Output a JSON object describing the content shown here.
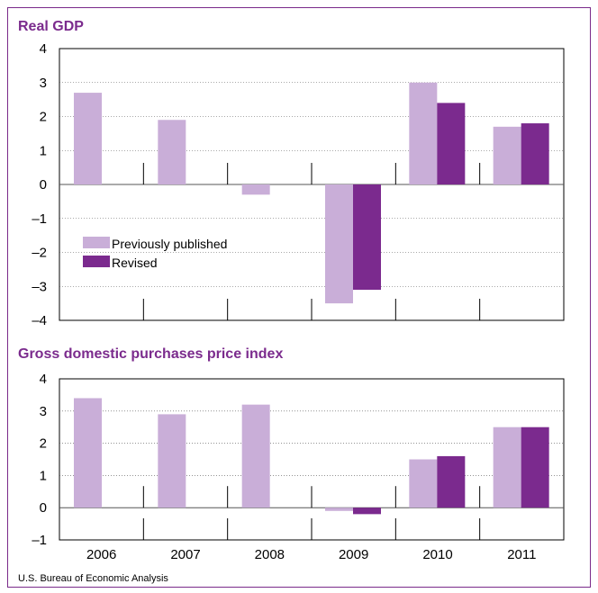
{
  "source": "U.S. Bureau of Economic Analysis",
  "colors": {
    "previous": "#c9aed8",
    "revised": "#7b2a8e",
    "title": "#7b2b8d",
    "frame": "#7a2a8a"
  },
  "chart_data": [
    {
      "type": "bar",
      "title": "Real GDP",
      "categories": [
        "2006",
        "2007",
        "2008",
        "2009",
        "2010",
        "2011"
      ],
      "series": [
        {
          "name": "Previously published",
          "values": [
            2.7,
            1.9,
            -0.3,
            -3.5,
            3.0,
            1.7
          ]
        },
        {
          "name": "Revised",
          "values": [
            null,
            null,
            null,
            -3.1,
            2.4,
            1.8
          ]
        }
      ],
      "ylim": [
        -4,
        4
      ],
      "yticks": [
        "4",
        "3",
        "2",
        "1",
        "0",
        "–1",
        "–2",
        "–3",
        "–4"
      ],
      "ytick_values": [
        4,
        3,
        2,
        1,
        0,
        -1,
        -2,
        -3,
        -4
      ],
      "grid": true,
      "legend": "inside-lower-left"
    },
    {
      "type": "bar",
      "title": "Gross domestic purchases price index",
      "categories": [
        "2006",
        "2007",
        "2008",
        "2009",
        "2010",
        "2011"
      ],
      "series": [
        {
          "name": "Previously published",
          "values": [
            3.4,
            2.9,
            3.2,
            -0.1,
            1.5,
            2.5
          ]
        },
        {
          "name": "Revised",
          "values": [
            null,
            null,
            null,
            -0.2,
            1.6,
            2.5
          ]
        }
      ],
      "ylim": [
        -1,
        4
      ],
      "yticks": [
        "4",
        "3",
        "2",
        "1",
        "0",
        "–1"
      ],
      "ytick_values": [
        4,
        3,
        2,
        1,
        0,
        -1
      ],
      "grid": true
    }
  ]
}
